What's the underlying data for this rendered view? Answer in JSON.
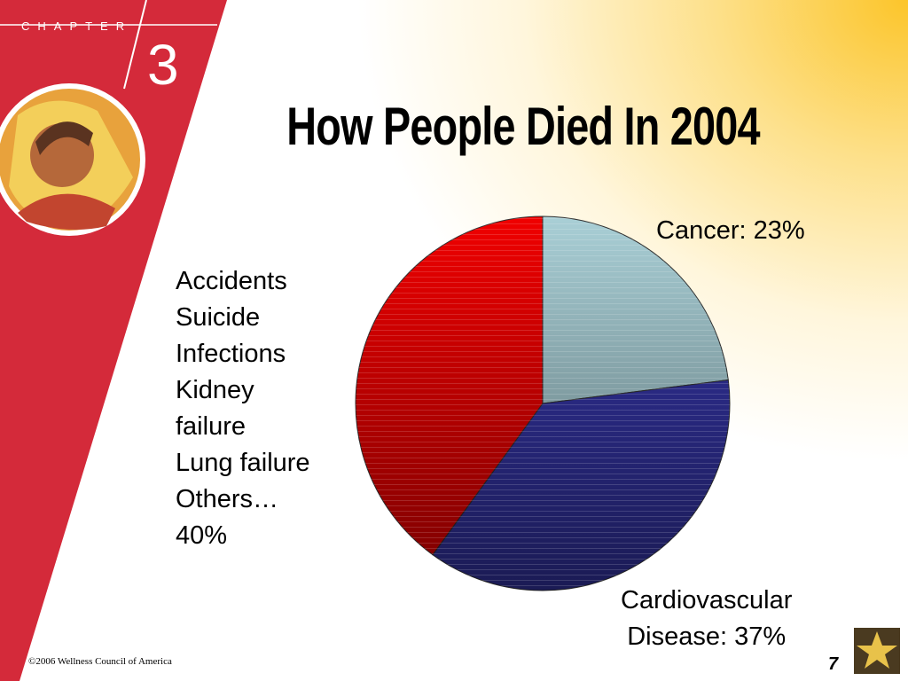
{
  "slide": {
    "chapter_label": "CHAPTER",
    "chapter_number": "3",
    "copyright": "©2006 Wellness Council of America",
    "page_number": "7"
  },
  "chart_data": {
    "type": "pie",
    "title": "How People Died In 2004",
    "values": [
      23,
      37,
      40
    ],
    "value_labels": [
      "Cancer: 23%",
      "Cardiovascular\nDisease: 37%",
      "Accidents\nSuicide\nInfections\nKidney\nfailure\nLung failure\nOthers…\n40%"
    ],
    "colors": [
      "#a9cfd6",
      "#3535a8",
      "#f00000"
    ]
  }
}
